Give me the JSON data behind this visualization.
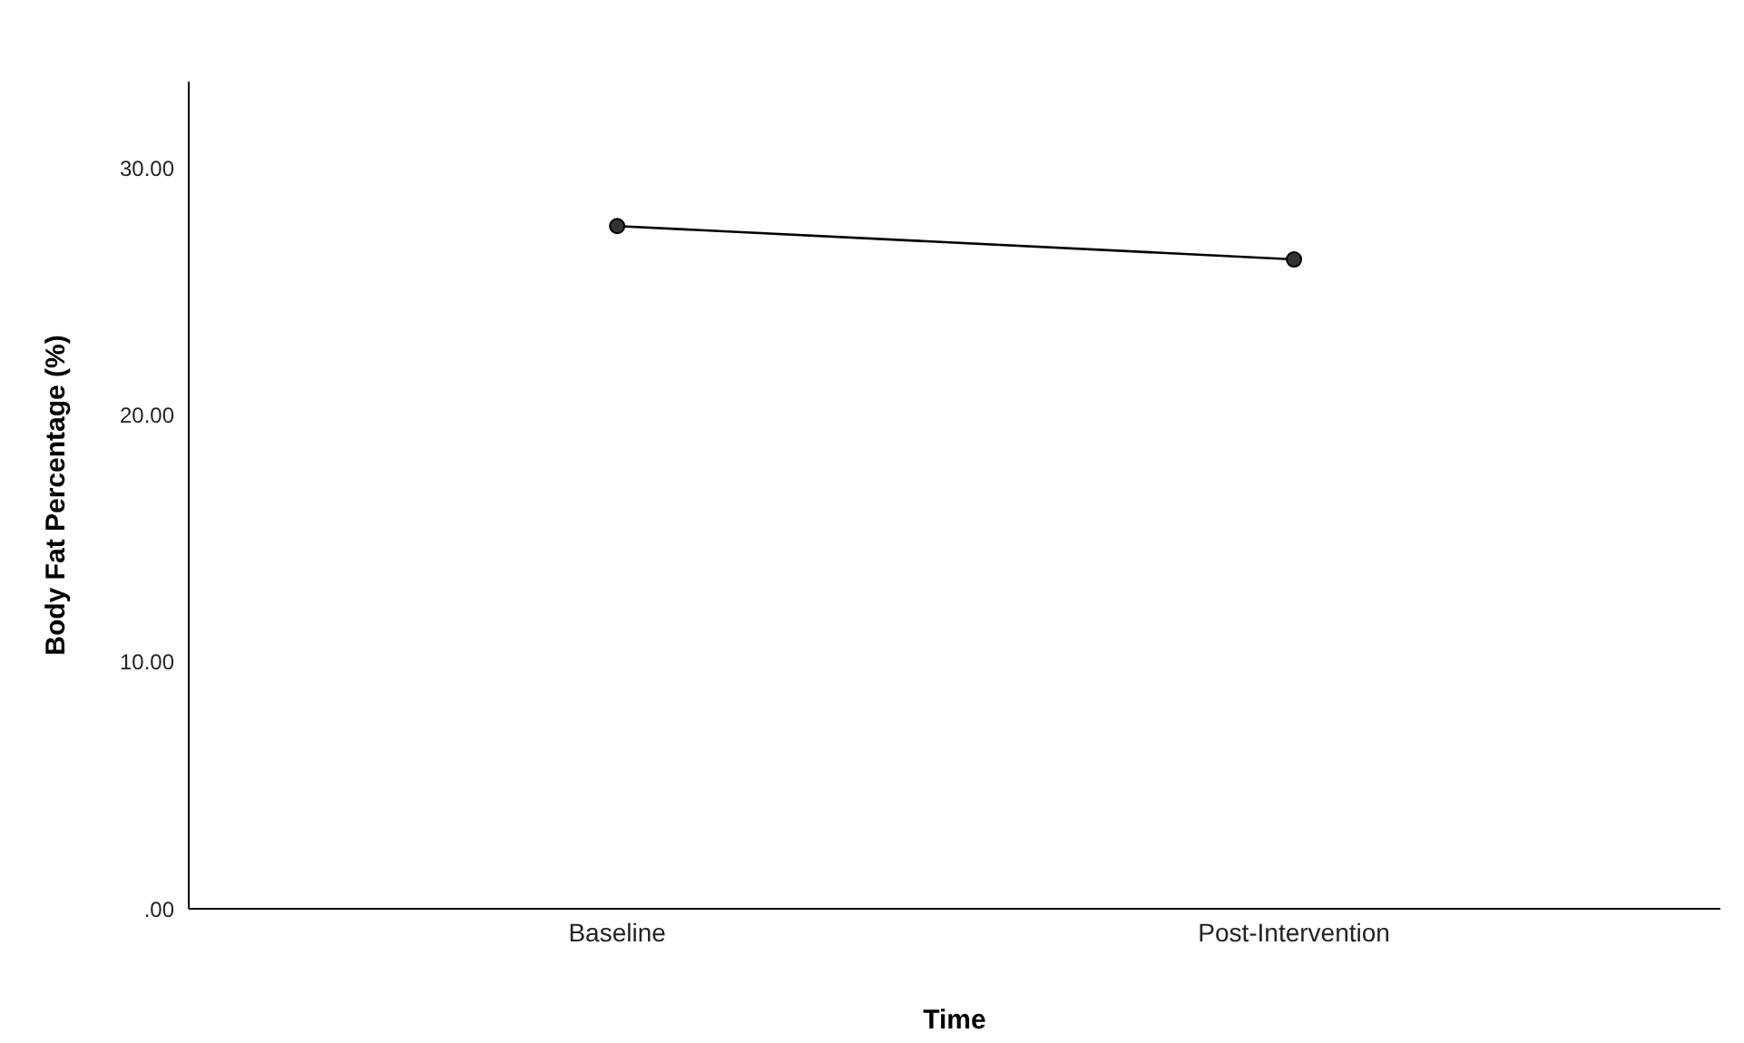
{
  "chart_data": {
    "type": "line",
    "xlabel": "Time",
    "ylabel": "Body Fat Percentage (%)",
    "categories": [
      "Baseline",
      "Post-Intervention"
    ],
    "series": [
      {
        "color": "#333333",
        "values": [
          27.65,
          26.3
        ]
      }
    ],
    "ylim": [
      0,
      33.5
    ],
    "yticks": [
      {
        "value": 0,
        "label": ".00"
      },
      {
        "value": 10,
        "label": "10.00"
      },
      {
        "value": 20,
        "label": "20.00"
      },
      {
        "value": 30,
        "label": "30.00"
      }
    ],
    "grid": false,
    "legend": false,
    "marker": "circle",
    "line_style": "solid"
  }
}
